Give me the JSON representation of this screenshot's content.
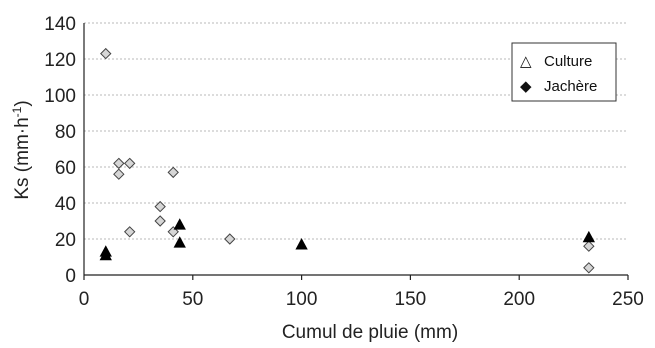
{
  "chart_data": {
    "type": "scatter",
    "xlabel": "Cumul de pluie (mm)",
    "ylabel": "Ks (mm·h",
    "ylabel_sup": "-1",
    "ylabel_close": ")",
    "xlim": [
      0,
      250
    ],
    "ylim": [
      0,
      140
    ],
    "xticks": [
      "0",
      "50",
      "100",
      "150",
      "200",
      "250"
    ],
    "yticks": [
      "0",
      "20",
      "40",
      "60",
      "80",
      "100",
      "120",
      "140"
    ],
    "grid": true,
    "legend_position": "top-right",
    "legend": [
      {
        "symbol": "△",
        "label": "Culture"
      },
      {
        "symbol": "◆",
        "label": "Jachère"
      }
    ],
    "series": [
      {
        "name": "Jachère",
        "marker": "diamond",
        "fill": "#d6d6d6",
        "stroke": "#444444",
        "points": [
          {
            "x": 10,
            "y": 123
          },
          {
            "x": 16,
            "y": 62
          },
          {
            "x": 16,
            "y": 56
          },
          {
            "x": 21,
            "y": 62
          },
          {
            "x": 21,
            "y": 24
          },
          {
            "x": 35,
            "y": 38
          },
          {
            "x": 35,
            "y": 30
          },
          {
            "x": 41,
            "y": 57
          },
          {
            "x": 41,
            "y": 24
          },
          {
            "x": 67,
            "y": 20
          },
          {
            "x": 232,
            "y": 16
          },
          {
            "x": 232,
            "y": 4
          }
        ]
      },
      {
        "name": "Culture",
        "marker": "triangle",
        "fill": "#000000",
        "stroke": "#000000",
        "points": [
          {
            "x": 10,
            "y": 13
          },
          {
            "x": 10,
            "y": 11
          },
          {
            "x": 44,
            "y": 28
          },
          {
            "x": 44,
            "y": 18
          },
          {
            "x": 100,
            "y": 17
          },
          {
            "x": 232,
            "y": 21
          }
        ]
      }
    ]
  }
}
